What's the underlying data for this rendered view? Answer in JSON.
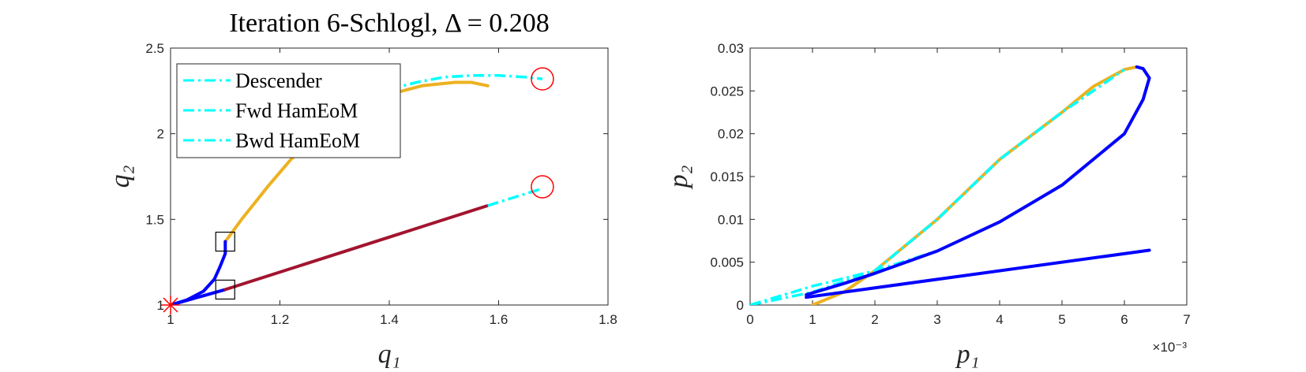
{
  "chart_data": [
    {
      "type": "line",
      "title": "Iteration 6-Schlogl, Δ = 0.208",
      "xlabel": "q₁",
      "ylabel": "q₂",
      "xlim": [
        1,
        1.8
      ],
      "ylim": [
        1,
        2.5
      ],
      "xticks": [
        "1",
        "1.2",
        "1.4",
        "1.6",
        "1.8"
      ],
      "yticks": [
        "1",
        "1.5",
        "2",
        "2.5"
      ],
      "legend": {
        "placement": "top-left",
        "entries": [
          "Descender",
          "Fwd HamEoM",
          "Bwd HamEoM"
        ]
      },
      "series": [
        {
          "color": "#EDB120",
          "style": "solid",
          "points": [
            [
              1.1,
              1.37
            ],
            [
              1.13,
              1.5
            ],
            [
              1.18,
              1.7
            ],
            [
              1.22,
              1.85
            ],
            [
              1.26,
              1.97
            ],
            [
              1.3,
              2.07
            ],
            [
              1.34,
              2.15
            ],
            [
              1.4,
              2.23
            ],
            [
              1.46,
              2.28
            ],
            [
              1.52,
              2.3
            ],
            [
              1.55,
              2.3
            ],
            [
              1.58,
              2.28
            ]
          ]
        },
        {
          "color": "#00FFFF",
          "style": "dashdot",
          "points": [
            [
              1.4,
              2.26
            ],
            [
              1.45,
              2.3
            ],
            [
              1.5,
              2.33
            ],
            [
              1.55,
              2.34
            ],
            [
              1.6,
              2.34
            ],
            [
              1.65,
              2.33
            ],
            [
              1.68,
              2.32
            ]
          ]
        },
        {
          "color": "#0000FF",
          "style": "solid",
          "points": [
            [
              1.0,
              1.0
            ],
            [
              1.03,
              1.03
            ],
            [
              1.06,
              1.08
            ],
            [
              1.08,
              1.15
            ],
            [
              1.09,
              1.22
            ],
            [
              1.1,
              1.3
            ],
            [
              1.1,
              1.37
            ]
          ]
        },
        {
          "color": "#0000FF",
          "style": "solid",
          "points": [
            [
              1.0,
              1.0
            ],
            [
              1.1,
              1.09
            ]
          ]
        },
        {
          "color": "#A2142F",
          "style": "solid",
          "points": [
            [
              1.1,
              1.09
            ],
            [
              1.58,
              1.58
            ]
          ]
        },
        {
          "color": "#00FFFF",
          "style": "dashdot",
          "points": [
            [
              1.58,
              1.58
            ],
            [
              1.68,
              1.68
            ]
          ]
        }
      ],
      "markers": [
        {
          "kind": "circle",
          "color": "#FF0000",
          "x": 1.68,
          "y": 2.32
        },
        {
          "kind": "circle",
          "color": "#FF0000",
          "x": 1.68,
          "y": 1.69
        },
        {
          "kind": "square",
          "color": "#000000",
          "x": 1.1,
          "y": 1.37
        },
        {
          "kind": "square",
          "color": "#000000",
          "x": 1.1,
          "y": 1.09
        },
        {
          "kind": "asterisk",
          "color": "#FF0000",
          "x": 1.0,
          "y": 1.0
        }
      ],
      "grid": false
    },
    {
      "type": "line",
      "title": "",
      "xlabel": "p₁",
      "ylabel": "p₂",
      "xlim": [
        0,
        0.007
      ],
      "ylim": [
        0,
        0.03
      ],
      "xticks": [
        "0",
        "1",
        "2",
        "3",
        "4",
        "5",
        "6",
        "7"
      ],
      "x_exponent": "×10⁻³",
      "yticks": [
        "0",
        "0.005",
        "0.01",
        "0.015",
        "0.02",
        "0.025",
        "0.03"
      ],
      "series": [
        {
          "color": "#EDB120",
          "style": "solid",
          "points": [
            [
              0.001,
              0.0
            ],
            [
              0.0015,
              0.0015
            ],
            [
              0.002,
              0.004
            ],
            [
              0.003,
              0.01
            ],
            [
              0.004,
              0.017
            ],
            [
              0.005,
              0.0225
            ],
            [
              0.0055,
              0.0255
            ],
            [
              0.006,
              0.0275
            ],
            [
              0.0062,
              0.0278
            ]
          ]
        },
        {
          "color": "#00FFFF",
          "style": "dashdot",
          "points": [
            [
              0.0,
              0.0
            ],
            [
              0.001,
              0.0015
            ],
            [
              0.002,
              0.004
            ],
            [
              0.003,
              0.01
            ],
            [
              0.004,
              0.017
            ],
            [
              0.005,
              0.0225
            ],
            [
              0.006,
              0.0275
            ]
          ]
        },
        {
          "color": "#00FFFF",
          "style": "dashdot",
          "points": [
            [
              0.0,
              0.0
            ],
            [
              0.001,
              0.0022
            ],
            [
              0.002,
              0.004
            ],
            [
              0.003,
              0.0063
            ],
            [
              0.004,
              0.0097
            ],
            [
              0.005,
              0.014
            ],
            [
              0.006,
              0.02
            ],
            [
              0.0063,
              0.024
            ]
          ]
        },
        {
          "color": "#0000FF",
          "style": "solid",
          "points": [
            [
              0.0009,
              0.0012
            ],
            [
              0.0015,
              0.0025
            ],
            [
              0.002,
              0.0037
            ],
            [
              0.003,
              0.0063
            ],
            [
              0.004,
              0.0097
            ],
            [
              0.005,
              0.014
            ],
            [
              0.006,
              0.02
            ],
            [
              0.0063,
              0.024
            ],
            [
              0.0064,
              0.0265
            ],
            [
              0.0063,
              0.0276
            ],
            [
              0.0062,
              0.0278
            ]
          ]
        },
        {
          "color": "#0000FF",
          "style": "solid",
          "points": [
            [
              0.0009,
              0.0009
            ],
            [
              0.0064,
              0.0064
            ]
          ]
        }
      ],
      "grid": false
    }
  ]
}
